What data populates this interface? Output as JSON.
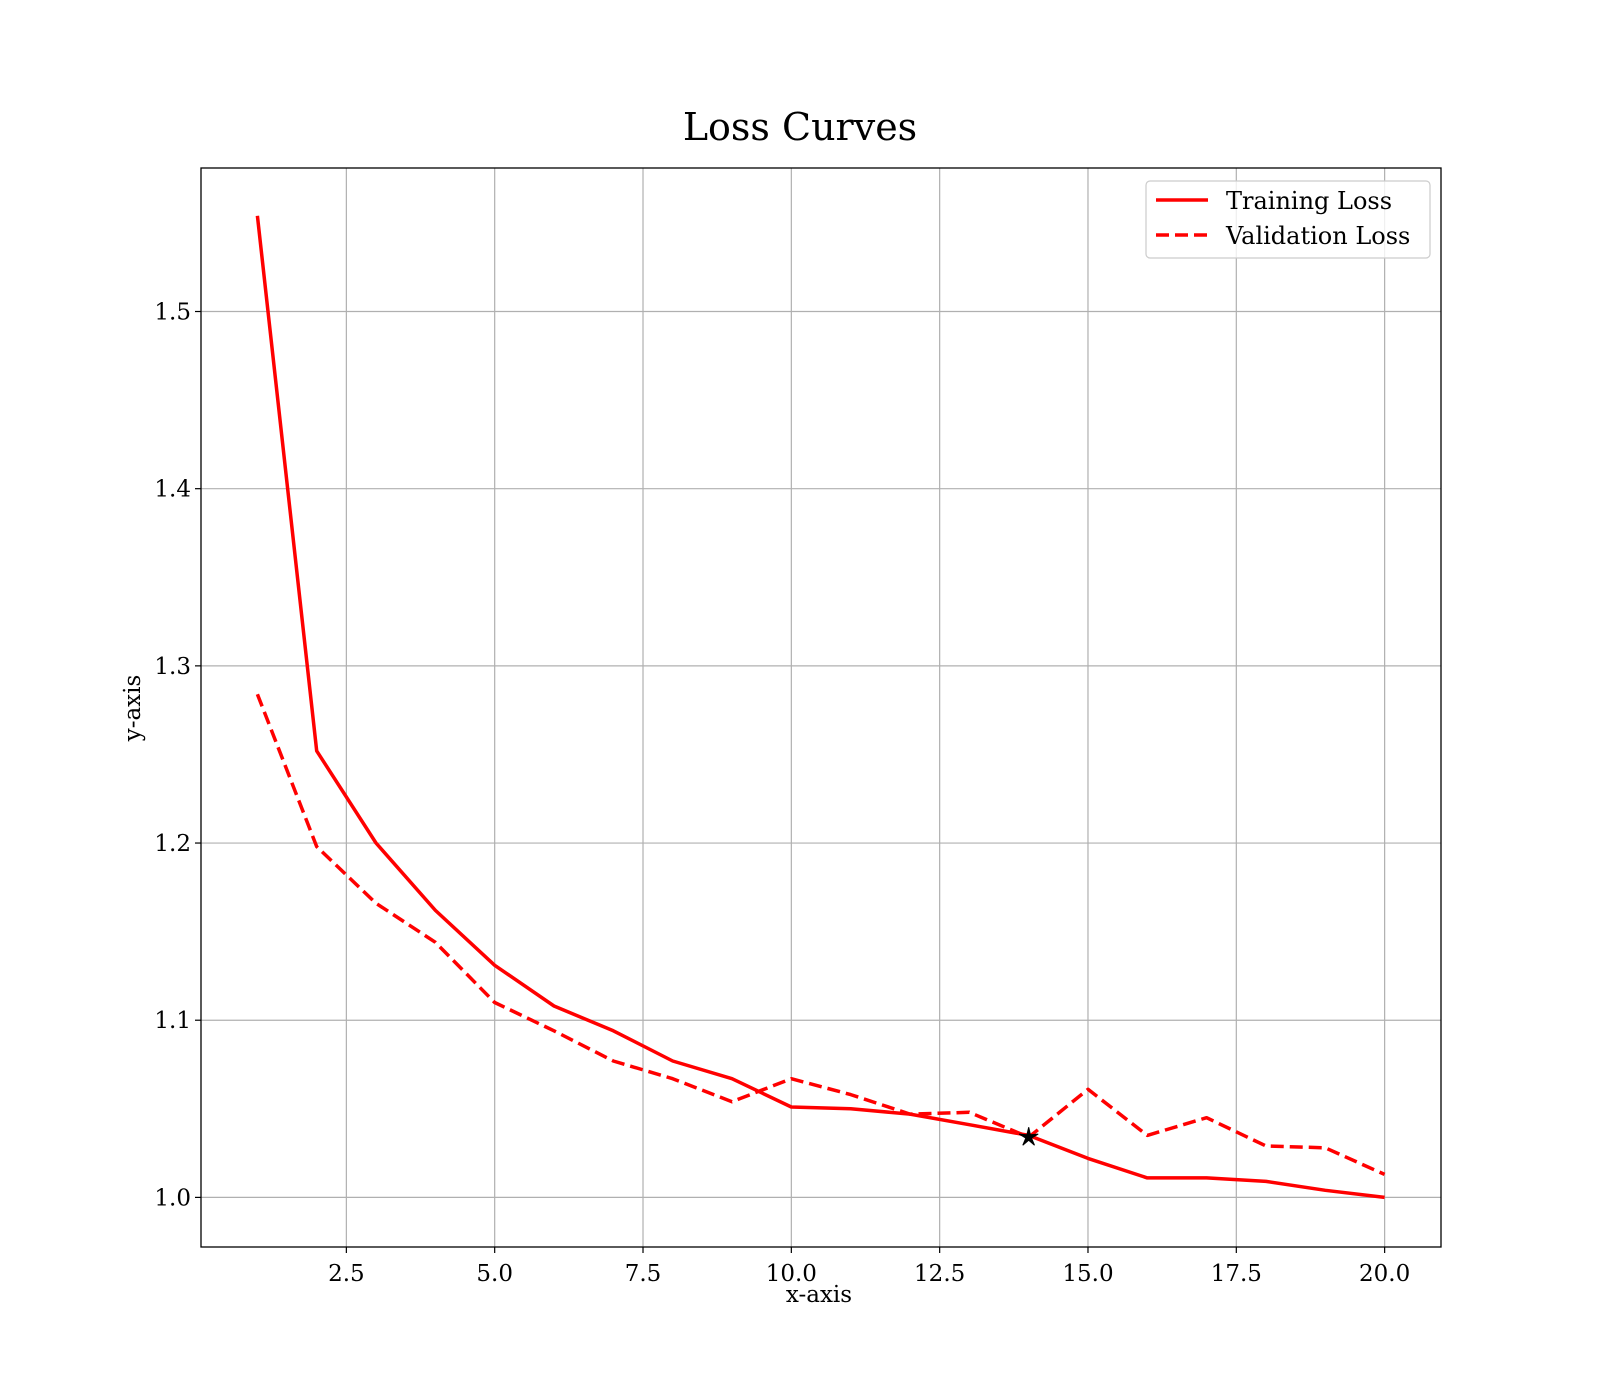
{
  "chart_data": {
    "type": "line",
    "title": "Loss Curves",
    "xlabel": "x-axis",
    "ylabel": "y-axis",
    "xlim": [
      0.05,
      20.95
    ],
    "ylim": [
      0.972,
      1.581
    ],
    "xticks": [
      2.5,
      5.0,
      7.5,
      10.0,
      12.5,
      15.0,
      17.5,
      20.0
    ],
    "xtick_labels": [
      "2.5",
      "5.0",
      "7.5",
      "10.0",
      "12.5",
      "15.0",
      "17.5",
      "20.0"
    ],
    "yticks": [
      1.0,
      1.1,
      1.2,
      1.3,
      1.4,
      1.5
    ],
    "ytick_labels": [
      "1.0",
      "1.1",
      "1.2",
      "1.3",
      "1.4",
      "1.5"
    ],
    "grid": true,
    "legend_position": "top-right",
    "x": [
      1,
      2,
      3,
      4,
      5,
      6,
      7,
      8,
      9,
      10,
      11,
      12,
      13,
      14,
      15,
      16,
      17,
      18,
      19,
      20
    ],
    "series": [
      {
        "name": "Training Loss",
        "style": "solid",
        "color": "#ff0000",
        "values": [
          1.554,
          1.252,
          1.2,
          1.162,
          1.131,
          1.108,
          1.094,
          1.077,
          1.067,
          1.051,
          1.05,
          1.047,
          1.041,
          1.035,
          1.022,
          1.011,
          1.011,
          1.009,
          1.004,
          1.0
        ]
      },
      {
        "name": "Validation Loss",
        "style": "dashed",
        "color": "#ff0000",
        "values": [
          1.284,
          1.198,
          1.166,
          1.144,
          1.11,
          1.094,
          1.077,
          1.067,
          1.054,
          1.067,
          1.058,
          1.047,
          1.048,
          1.034,
          1.061,
          1.035,
          1.045,
          1.029,
          1.028,
          1.013
        ]
      }
    ],
    "marker": {
      "x": 14,
      "y": 1.034,
      "symbol": "star",
      "color": "#000000"
    }
  }
}
